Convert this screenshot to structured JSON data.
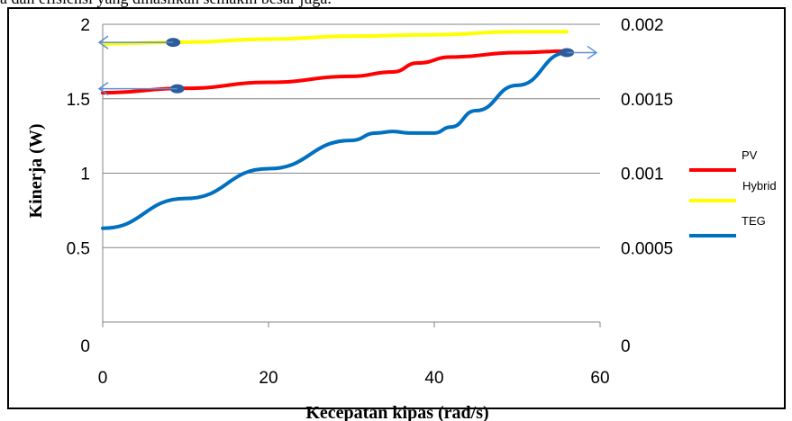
{
  "header_text": "a dan efisiensi yang dihasilkan semakin besar juga.",
  "chart_data": {
    "type": "line",
    "xlabel": "Kecepatan kipas (rad/s)",
    "ylabel": "Kinerja (W)",
    "xlim": [
      0,
      60
    ],
    "xticks": [
      "0",
      "20",
      "40",
      "60"
    ],
    "ylim_left": [
      0,
      2
    ],
    "yticks_left": [
      "0",
      "0.5",
      "1",
      "1.5",
      "2"
    ],
    "ylim_right": [
      0,
      0.002
    ],
    "yticks_right": [
      "0",
      "0.0005",
      "0.001",
      "0.0015",
      "0.002"
    ],
    "grid": true,
    "legend_position": "right",
    "series": [
      {
        "name": "PV",
        "color": "#ff0000",
        "axis": "left",
        "x": [
          0,
          10,
          20,
          30,
          35,
          38,
          42,
          50,
          56
        ],
        "y": [
          1.54,
          1.57,
          1.61,
          1.65,
          1.68,
          1.74,
          1.78,
          1.81,
          1.82
        ]
      },
      {
        "name": "Hybrid",
        "color": "#ffff00",
        "axis": "left",
        "x": [
          0,
          10,
          20,
          30,
          40,
          50,
          56
        ],
        "y": [
          1.87,
          1.88,
          1.9,
          1.92,
          1.93,
          1.95,
          1.95
        ]
      },
      {
        "name": "TEG",
        "color": "#0070c0",
        "axis": "right",
        "x": [
          0,
          10,
          20,
          30,
          33,
          35,
          37,
          40,
          42,
          45,
          50,
          56
        ],
        "y": [
          0.00063,
          0.00083,
          0.00103,
          0.00122,
          0.00127,
          0.00128,
          0.00127,
          0.00127,
          0.00131,
          0.00142,
          0.00159,
          0.00181
        ]
      }
    ],
    "annotations": [
      {
        "type": "arrow",
        "direction": "left",
        "target_series": "Hybrid",
        "x": 8.5
      },
      {
        "type": "arrow",
        "direction": "left",
        "target_series": "PV",
        "x": 9
      },
      {
        "type": "arrow",
        "direction": "right",
        "target_series": "TEG",
        "x": 56
      }
    ]
  }
}
